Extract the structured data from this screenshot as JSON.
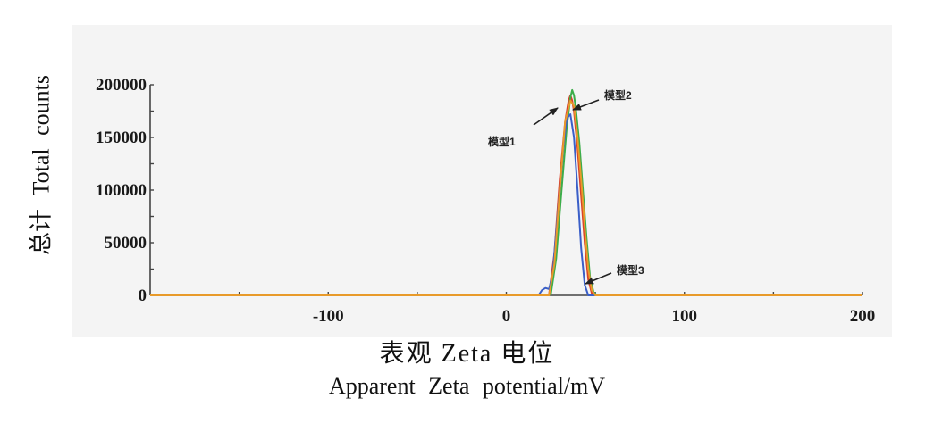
{
  "chart_data": {
    "type": "line",
    "xlabel": "表观 Zeta 电位",
    "xlabel_en": "Apparent Zeta potential/mV",
    "ylabel": "总计 Total counts",
    "xlim": [
      -200,
      200
    ],
    "ylim": [
      0,
      200000
    ],
    "x_ticks": [
      "-100",
      "0",
      "100",
      "200"
    ],
    "y_ticks": [
      "0",
      "50000",
      "100000",
      "150000",
      "200000"
    ],
    "grid": false,
    "series": [
      {
        "name": "模型1",
        "color": "#d9412b",
        "x": [
          -200,
          20,
          24,
          27,
          30,
          33,
          35,
          36,
          37,
          38,
          40,
          42,
          44,
          46,
          48,
          50,
          200
        ],
        "y": [
          0,
          0,
          500,
          40000,
          110000,
          165000,
          185000,
          190000,
          185000,
          175000,
          140000,
          95000,
          50000,
          15000,
          2000,
          0,
          0
        ]
      },
      {
        "name": "模型2",
        "color": "#3cad4a",
        "x": [
          -200,
          22,
          25,
          28,
          31,
          34,
          36,
          37,
          38,
          39,
          41,
          43,
          45,
          47,
          49,
          51,
          200
        ],
        "y": [
          0,
          0,
          1000,
          35000,
          100000,
          160000,
          188000,
          195000,
          190000,
          178000,
          145000,
          100000,
          55000,
          18000,
          3000,
          0,
          0
        ]
      },
      {
        "name": "模型3",
        "color": "#3a5fc8",
        "x": [
          -200,
          18,
          20,
          22,
          24,
          26,
          29,
          32,
          34,
          36,
          38,
          40,
          42,
          44,
          46,
          200
        ],
        "y": [
          0,
          0,
          5000,
          7000,
          6000,
          20000,
          80000,
          140000,
          168000,
          172000,
          150000,
          100000,
          45000,
          10000,
          0,
          0
        ]
      },
      {
        "name": "",
        "color": "#e89a2a",
        "x": [
          -200,
          24,
          27,
          30,
          33,
          36,
          38,
          40,
          42,
          44,
          46,
          48,
          50,
          200
        ],
        "y": [
          0,
          0,
          30000,
          100000,
          165000,
          185000,
          180000,
          150000,
          110000,
          65000,
          25000,
          5000,
          0,
          0
        ]
      }
    ],
    "annotations": [
      "模型1",
      "模型2",
      "模型3"
    ]
  },
  "labels": {
    "xlabel_cn": "表观 Zeta 电位",
    "xlabel_en": "Apparent Zeta potential/mV",
    "ylabel": "总计 Total counts"
  }
}
